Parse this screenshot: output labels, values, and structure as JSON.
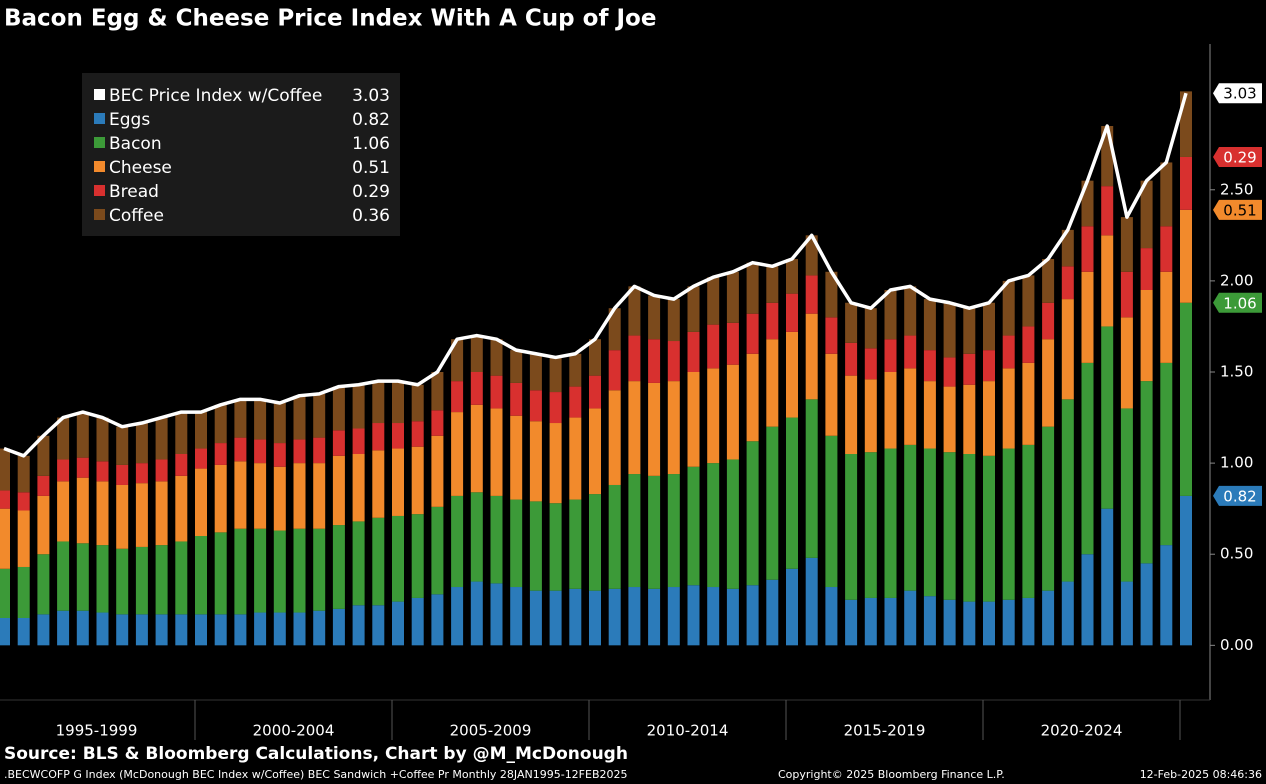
{
  "chart_data": {
    "type": "stacked_bar_line",
    "title": "Bacon Egg & Cheese Price Index With A Cup of Joe",
    "source": "Source: BLS & Bloomberg Calculations, Chart by @M_McDonough",
    "footer_left": ".BECWCOFP G Index (McDonough BEC Index w/Coffee) BEC Sandwich +Coffee Pr  Monthly 28JAN1995-12FEB2025",
    "footer_center": "Copyright© 2025 Bloomberg Finance L.P.",
    "footer_right": "12-Feb-2025 08:46:36",
    "periods": [
      "1995-1999",
      "2000-2004",
      "2005-2009",
      "2010-2014",
      "2015-2019",
      "2020-2024"
    ],
    "ylim": [
      -0.3,
      3.3
    ],
    "yticks": [
      {
        "value": 0,
        "label": "0.00"
      },
      {
        "value": 0.5,
        "label": "0.50"
      },
      {
        "value": 1,
        "label": "1.00"
      },
      {
        "value": 1.5,
        "label": "1.50"
      },
      {
        "value": 2,
        "label": "2.00"
      },
      {
        "value": 2.5,
        "label": "2.50"
      }
    ],
    "legend": "upper left",
    "line": {
      "name": "BEC Price Index w/Coffee",
      "color": "#ffffff",
      "values": [
        1.08,
        1.04,
        1.15,
        1.25,
        1.28,
        1.25,
        1.2,
        1.22,
        1.25,
        1.28,
        1.28,
        1.32,
        1.35,
        1.35,
        1.33,
        1.37,
        1.38,
        1.42,
        1.43,
        1.45,
        1.45,
        1.43,
        1.5,
        1.68,
        1.7,
        1.68,
        1.62,
        1.6,
        1.58,
        1.6,
        1.68,
        1.85,
        1.97,
        1.92,
        1.9,
        1.97,
        2.02,
        2.05,
        2.1,
        2.08,
        2.12,
        2.25,
        2.05,
        1.88,
        1.85,
        1.95,
        1.97,
        1.9,
        1.88,
        1.85,
        1.88,
        2.0,
        2.03,
        2.12,
        2.28,
        2.55,
        2.85,
        2.35,
        2.55,
        2.65,
        3.03
      ]
    },
    "series": [
      {
        "name": "Eggs",
        "color": "#2b7bba",
        "values": [
          0.15,
          0.15,
          0.17,
          0.19,
          0.19,
          0.18,
          0.17,
          0.17,
          0.17,
          0.17,
          0.17,
          0.17,
          0.17,
          0.18,
          0.18,
          0.18,
          0.19,
          0.2,
          0.22,
          0.22,
          0.24,
          0.26,
          0.28,
          0.32,
          0.35,
          0.34,
          0.32,
          0.3,
          0.3,
          0.31,
          0.3,
          0.31,
          0.32,
          0.31,
          0.32,
          0.33,
          0.32,
          0.31,
          0.33,
          0.36,
          0.42,
          0.48,
          0.32,
          0.25,
          0.26,
          0.26,
          0.3,
          0.27,
          0.25,
          0.24,
          0.24,
          0.25,
          0.26,
          0.3,
          0.35,
          0.5,
          0.75,
          0.35,
          0.45,
          0.55,
          0.82
        ]
      },
      {
        "name": "Bacon",
        "color": "#3c9a38",
        "values": [
          0.27,
          0.28,
          0.33,
          0.38,
          0.37,
          0.37,
          0.36,
          0.37,
          0.38,
          0.4,
          0.43,
          0.45,
          0.47,
          0.46,
          0.45,
          0.46,
          0.45,
          0.46,
          0.46,
          0.48,
          0.47,
          0.46,
          0.48,
          0.5,
          0.49,
          0.48,
          0.48,
          0.49,
          0.48,
          0.49,
          0.53,
          0.57,
          0.62,
          0.62,
          0.62,
          0.65,
          0.68,
          0.71,
          0.79,
          0.84,
          0.83,
          0.87,
          0.83,
          0.8,
          0.8,
          0.82,
          0.8,
          0.81,
          0.81,
          0.81,
          0.8,
          0.83,
          0.84,
          0.9,
          1.0,
          1.05,
          1.0,
          0.95,
          1.0,
          1.0,
          1.06
        ]
      },
      {
        "name": "Cheese",
        "color": "#f28a2c",
        "values": [
          0.33,
          0.31,
          0.32,
          0.33,
          0.36,
          0.35,
          0.35,
          0.35,
          0.35,
          0.36,
          0.37,
          0.37,
          0.37,
          0.36,
          0.35,
          0.36,
          0.36,
          0.38,
          0.37,
          0.37,
          0.37,
          0.37,
          0.39,
          0.46,
          0.48,
          0.48,
          0.46,
          0.44,
          0.44,
          0.45,
          0.47,
          0.52,
          0.51,
          0.51,
          0.51,
          0.52,
          0.52,
          0.52,
          0.48,
          0.48,
          0.47,
          0.47,
          0.45,
          0.43,
          0.4,
          0.42,
          0.42,
          0.37,
          0.36,
          0.38,
          0.41,
          0.44,
          0.45,
          0.48,
          0.55,
          0.5,
          0.5,
          0.5,
          0.5,
          0.5,
          0.51
        ]
      },
      {
        "name": "Bread",
        "color": "#d8302f",
        "values": [
          0.1,
          0.1,
          0.11,
          0.12,
          0.11,
          0.11,
          0.11,
          0.11,
          0.12,
          0.12,
          0.11,
          0.12,
          0.13,
          0.13,
          0.13,
          0.13,
          0.14,
          0.14,
          0.14,
          0.15,
          0.14,
          0.14,
          0.14,
          0.17,
          0.18,
          0.18,
          0.18,
          0.17,
          0.17,
          0.17,
          0.18,
          0.22,
          0.25,
          0.24,
          0.22,
          0.22,
          0.24,
          0.23,
          0.22,
          0.2,
          0.21,
          0.21,
          0.2,
          0.18,
          0.17,
          0.18,
          0.18,
          0.17,
          0.16,
          0.17,
          0.17,
          0.18,
          0.2,
          0.2,
          0.18,
          0.25,
          0.27,
          0.25,
          0.23,
          0.25,
          0.29
        ]
      },
      {
        "name": "Coffee",
        "color": "#7b4a1c",
        "values": [
          0.23,
          0.2,
          0.22,
          0.23,
          0.25,
          0.24,
          0.21,
          0.22,
          0.23,
          0.23,
          0.2,
          0.21,
          0.21,
          0.22,
          0.22,
          0.24,
          0.24,
          0.24,
          0.24,
          0.23,
          0.23,
          0.2,
          0.21,
          0.23,
          0.2,
          0.2,
          0.18,
          0.2,
          0.19,
          0.18,
          0.2,
          0.23,
          0.27,
          0.24,
          0.23,
          0.25,
          0.26,
          0.28,
          0.28,
          0.2,
          0.19,
          0.22,
          0.25,
          0.22,
          0.22,
          0.27,
          0.27,
          0.28,
          0.3,
          0.25,
          0.26,
          0.3,
          0.28,
          0.24,
          0.2,
          0.25,
          0.33,
          0.3,
          0.37,
          0.35,
          0.36
        ]
      }
    ]
  }
}
